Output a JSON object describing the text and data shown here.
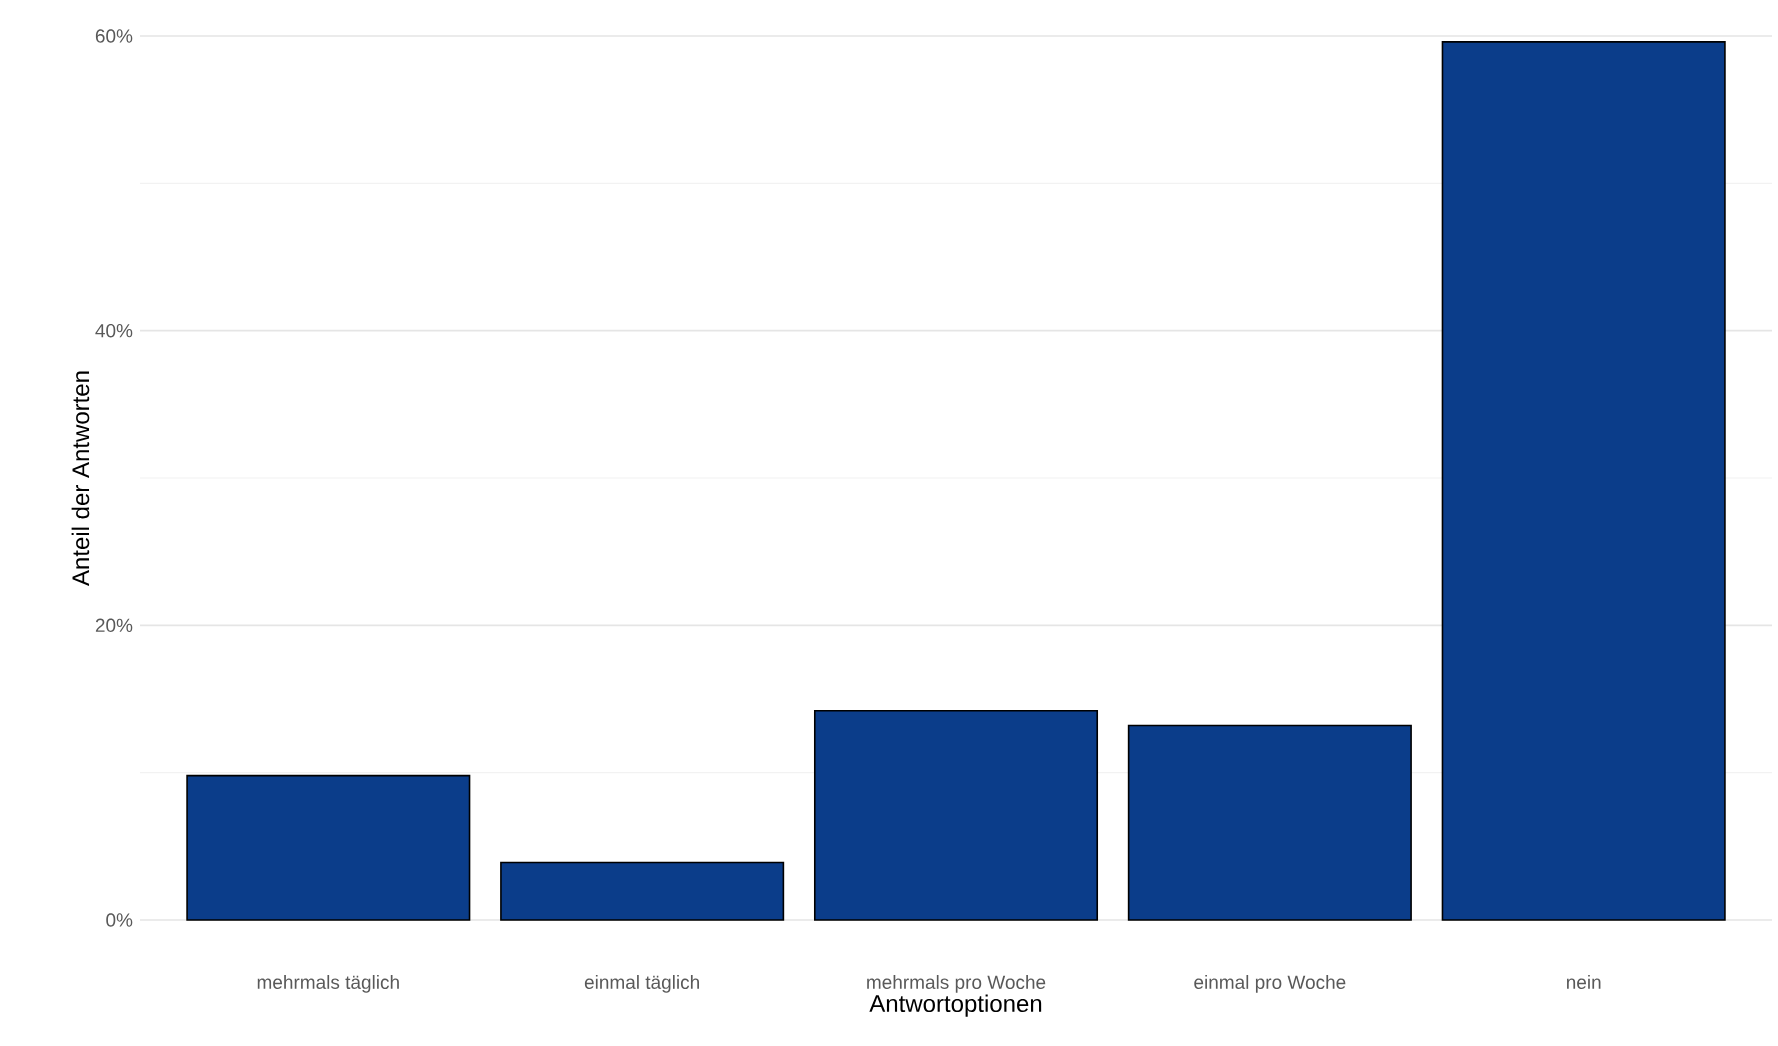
{
  "chart_data": {
    "type": "bar",
    "xlabel": "Antwortoptionen",
    "ylabel": "Anteil der Antworten",
    "categories": [
      "mehrmals täglich",
      "einmal täglich",
      "mehrmals pro Woche",
      "einmal pro Woche",
      "nein"
    ],
    "values": [
      9.8,
      3.9,
      14.2,
      13.2,
      59.6
    ],
    "color": "#0b3d8a",
    "ylim": [
      0,
      60
    ],
    "yticks": [
      {
        "value": 0,
        "label": "0%"
      },
      {
        "value": 10,
        "label": null
      },
      {
        "value": 20,
        "label": "20%"
      },
      {
        "value": 30,
        "label": null
      },
      {
        "value": 40,
        "label": "40%"
      },
      {
        "value": 50,
        "label": null
      },
      {
        "value": 60,
        "label": "60%"
      }
    ],
    "grid": "y"
  }
}
